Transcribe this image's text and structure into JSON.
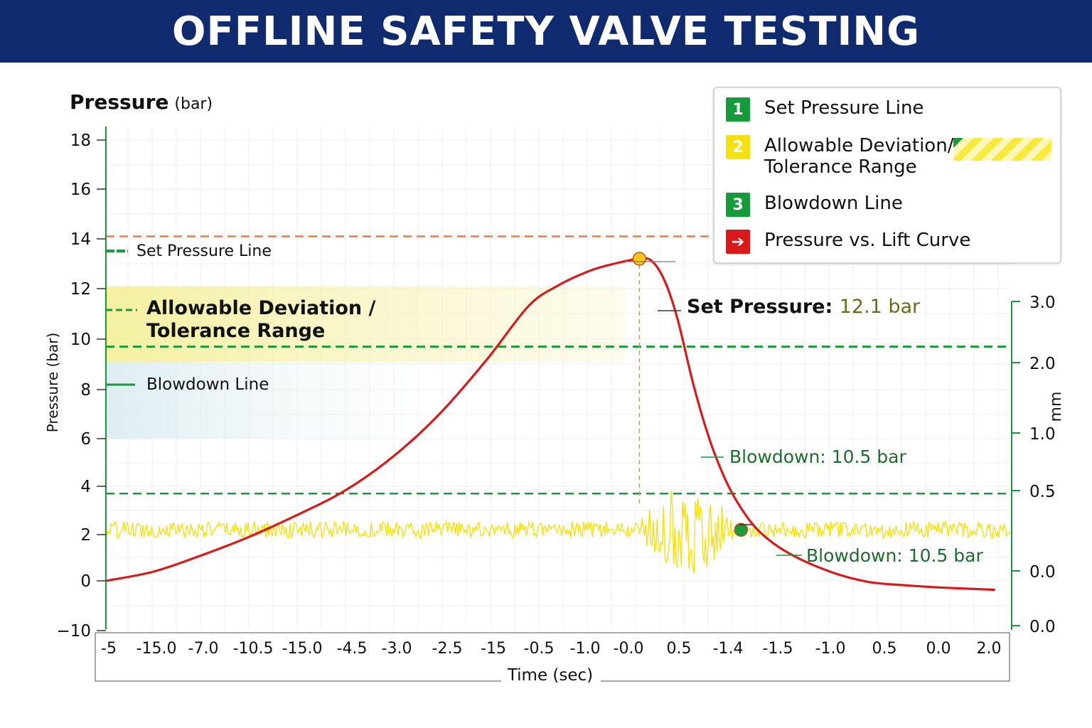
{
  "title": "OFFLINE SAFETY VALVE TESTING",
  "legend": {
    "items": [
      {
        "badge": "1",
        "label": "Set Pressure Line",
        "color": "#169b3a"
      },
      {
        "badge": "2",
        "label": "Allowable Deviation/",
        "label2": "Tolerance Range",
        "color": "#f5e010"
      },
      {
        "badge": "3",
        "label": "Blowdown Line",
        "color": "#169b3a"
      },
      {
        "badge": "➔",
        "label": "Pressure vs. Lift Curve",
        "color": "#d91a1a"
      }
    ]
  },
  "chart_data": {
    "type": "line",
    "title": "OFFLINE SAFETY VALVE TESTING",
    "y_axis": {
      "title_main": "Pressure",
      "title_unit": "(bar)",
      "side_label": "Pressure (bar)",
      "ticks": [
        "18",
        "16",
        "14",
        "12",
        "10",
        "8",
        "6",
        "4",
        "2",
        "0",
        "−10"
      ]
    },
    "y2_axis": {
      "label": "mm",
      "ticks": [
        "3.0",
        "2.0",
        "1.0",
        "0.5",
        "0.0",
        "0.0"
      ]
    },
    "x_axis": {
      "label": "Time (sec)",
      "ticks": [
        "-5",
        "-15.0",
        "-7.0",
        "-10.5",
        "-15.0",
        "-4.5",
        "-3.0",
        "-2.5",
        "-15",
        "-0.5",
        "-1.0",
        "-0.0",
        "0.5",
        "-1.4",
        "-1.5",
        "-1.0",
        "0.5",
        "0.0",
        "2.0"
      ]
    },
    "reference_lines": {
      "set_pressure_line": 14.1,
      "set_line_green": 9.7,
      "lower_green": 3.7
    },
    "tolerance_band": [
      9.1,
      12.1
    ],
    "blowdown_region": [
      6.0,
      9.1
    ],
    "series": [
      {
        "name": "Pressure vs. Lift Curve",
        "color": "#d91a1a",
        "points": [
          [
            0.0,
            0.0
          ],
          [
            1.5,
            0.4
          ],
          [
            3.0,
            1.1
          ],
          [
            4.5,
            1.9
          ],
          [
            6.0,
            2.8
          ],
          [
            7.5,
            3.8
          ],
          [
            9.0,
            5.2
          ],
          [
            10.5,
            7.0
          ],
          [
            12.0,
            9.2
          ],
          [
            13.3,
            11.3
          ],
          [
            14.2,
            12.1
          ],
          [
            15.2,
            12.7
          ],
          [
            16.0,
            13.0
          ],
          [
            16.8,
            13.2
          ],
          [
            17.2,
            13.1
          ],
          [
            17.6,
            12.3
          ],
          [
            18.0,
            10.8
          ],
          [
            18.5,
            8.2
          ],
          [
            19.0,
            6.0
          ],
          [
            19.5,
            4.3
          ],
          [
            20.0,
            3.1
          ],
          [
            20.6,
            2.1
          ],
          [
            21.5,
            1.2
          ],
          [
            22.8,
            0.4
          ],
          [
            24.0,
            -0.2
          ],
          [
            25.2,
            -0.9
          ],
          [
            26.5,
            -1.4
          ],
          [
            28.0,
            -1.8
          ]
        ]
      },
      {
        "name": "Lift signal",
        "color": "#f5e010",
        "baseline": 2.2,
        "noise_amplitude": 0.35,
        "burst_amplitude": 1.6,
        "burst_range": [
          16.8,
          19.8
        ]
      }
    ],
    "markers": [
      {
        "name": "set-pressure-point",
        "x": 16.8,
        "y": 13.2,
        "color": "#f7c51b"
      },
      {
        "name": "blowdown-point",
        "x": 20.0,
        "y": 2.2,
        "color": "#1c9b3b"
      }
    ],
    "annotations": {
      "set_pressure_line_label": "Set Pressure Line",
      "tolerance_label_1": "Allowable Deviation /",
      "tolerance_label_2": "Tolerance Range",
      "blowdown_line_label": "Blowdown Line",
      "set_pressure_callout_key": "Set Pressure: ",
      "set_pressure_callout_value": "12.1 bar",
      "blowdown_callout_1": "Blowdown: 10.5 bar",
      "blowdown_callout_2": "Blowdown: 10.5 bar"
    }
  }
}
